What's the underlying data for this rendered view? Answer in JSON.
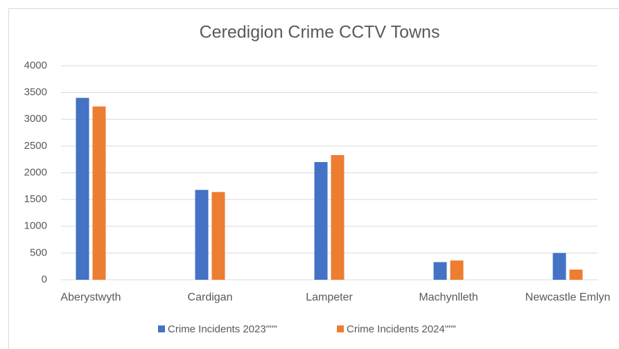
{
  "chart_data": {
    "type": "bar",
    "title": "Ceredigion Crime CCTV Towns",
    "categories": [
      "Aberystwyth",
      "Cardigan",
      "Lampeter",
      "Machynlleth",
      "Newcastle Emlyn"
    ],
    "series": [
      {
        "name": "Crime Incidents 2023\"\"\"",
        "color": "#4472c4",
        "values": [
          3400,
          1680,
          2200,
          330,
          500
        ]
      },
      {
        "name": "Crime Incidents 2024\"\"\"",
        "color": "#ed7d31",
        "values": [
          3240,
          1640,
          2330,
          360,
          190
        ]
      }
    ],
    "ylim": [
      0,
      4000
    ],
    "yticks": [
      0,
      500,
      1000,
      1500,
      2000,
      2500,
      3000,
      3500,
      4000
    ],
    "grid": true,
    "legend": "bottom"
  }
}
